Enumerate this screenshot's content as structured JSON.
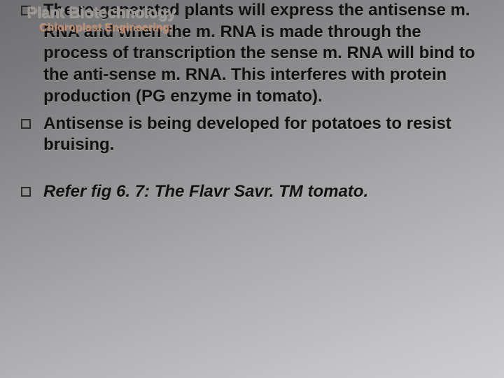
{
  "overlay": {
    "title": "Plant Biotechnology",
    "subtitle": "Chloroplast Engineering:"
  },
  "bullets": [
    {
      "text": "The re-generated plants will express the antisense m. RNA and when the m. RNA is made through the process of transcription the sense m. RNA will bind to the anti-sense m. RNA.  This interferes with protein production (PG enzyme in tomato).",
      "italic": false
    },
    {
      "text": "Antisense is being developed for potatoes to resist bruising.",
      "italic": false
    },
    {
      "text": "Refer fig 6. 7: The Flavr Savr. TM tomato.",
      "italic": true
    }
  ]
}
